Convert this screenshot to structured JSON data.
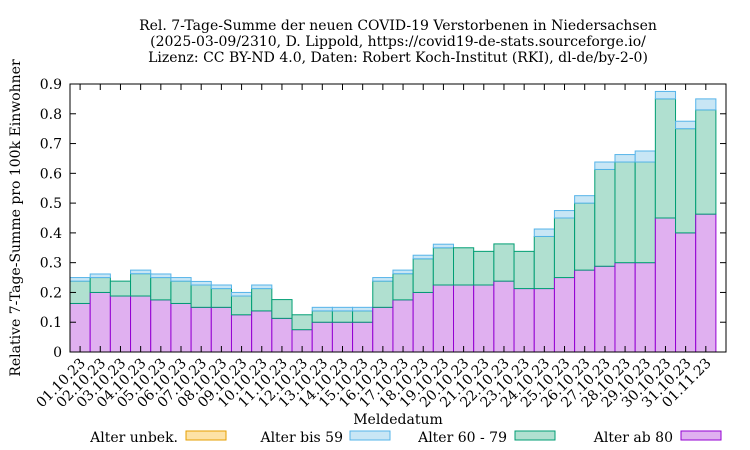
{
  "chart_data": {
    "type": "bar",
    "stacked": true,
    "title": [
      "Rel. 7-Tage-Summe der neuen COVID-19 Verstorbenen in Niedersachsen",
      "(2025-03-09/2310, D. Lippold, https://covid19-de-stats.sourceforge.io/",
      "Lizenz: CC BY-ND 4.0, Daten: Robert Koch-Institut (RKI), dl-de/by-2-0)"
    ],
    "xlabel": "Meldedatum",
    "ylabel": "Relative 7-Tage-Summe pro 100k Einwohner",
    "ylim": [
      0,
      0.9
    ],
    "yticks": [
      "0",
      "0.1",
      "0.2",
      "0.3",
      "0.4",
      "0.5",
      "0.6",
      "0.7",
      "0.8",
      "0.9"
    ],
    "categories": [
      "01.10.23",
      "02.10.23",
      "03.10.23",
      "04.10.23",
      "05.10.23",
      "06.10.23",
      "07.10.23",
      "08.10.23",
      "09.10.23",
      "10.10.23",
      "11.10.23",
      "12.10.23",
      "13.10.23",
      "14.10.23",
      "15.10.23",
      "16.10.23",
      "17.10.23",
      "18.10.23",
      "19.10.23",
      "20.10.23",
      "21.10.23",
      "22.10.23",
      "23.10.23",
      "24.10.23",
      "25.10.23",
      "26.10.23",
      "27.10.23",
      "28.10.23",
      "29.10.23",
      "30.10.23",
      "31.10.23",
      "01.11.23"
    ],
    "series": [
      {
        "name": "Alter ab 80",
        "color": "#e0b0f0",
        "stroke": "#9400d3",
        "values": [
          0.163,
          0.2,
          0.188,
          0.188,
          0.175,
          0.163,
          0.15,
          0.15,
          0.125,
          0.138,
          0.113,
          0.075,
          0.1,
          0.1,
          0.1,
          0.15,
          0.175,
          0.2,
          0.225,
          0.225,
          0.225,
          0.238,
          0.213,
          0.213,
          0.25,
          0.275,
          0.288,
          0.3,
          0.3,
          0.45,
          0.4,
          0.463
        ]
      },
      {
        "name": "Alter 60 - 79",
        "color": "#b0e0d0",
        "stroke": "#009e73",
        "values": [
          0.075,
          0.05,
          0.05,
          0.075,
          0.075,
          0.075,
          0.075,
          0.063,
          0.063,
          0.075,
          0.063,
          0.05,
          0.038,
          0.038,
          0.038,
          0.088,
          0.088,
          0.113,
          0.125,
          0.125,
          0.113,
          0.125,
          0.125,
          0.175,
          0.2,
          0.225,
          0.325,
          0.338,
          0.338,
          0.4,
          0.35,
          0.35
        ]
      },
      {
        "name": "Alter bis 59",
        "color": "#c8e6f5",
        "stroke": "#56b4e9",
        "values": [
          0.012,
          0.012,
          0,
          0.012,
          0.012,
          0.012,
          0.012,
          0.012,
          0.012,
          0.012,
          0,
          0,
          0.012,
          0.012,
          0.012,
          0.012,
          0.012,
          0.012,
          0.012,
          0,
          0,
          0,
          0,
          0.025,
          0.025,
          0.025,
          0.025,
          0.025,
          0.037,
          0.025,
          0.025,
          0.037
        ]
      },
      {
        "name": "Alter unbek.",
        "color": "#fde2a6",
        "stroke": "#e69f00",
        "values": [
          0,
          0,
          0,
          0,
          0,
          0,
          0,
          0,
          0,
          0,
          0,
          0,
          0,
          0,
          0,
          0,
          0,
          0,
          0,
          0,
          0,
          0,
          0,
          0,
          0,
          0,
          0,
          0,
          0,
          0,
          0,
          0
        ]
      }
    ],
    "legend": {
      "placement": "bottom",
      "order": [
        "Alter unbek.",
        "Alter bis 59",
        "Alter 60 - 79",
        "Alter ab 80"
      ]
    },
    "grid": false
  }
}
